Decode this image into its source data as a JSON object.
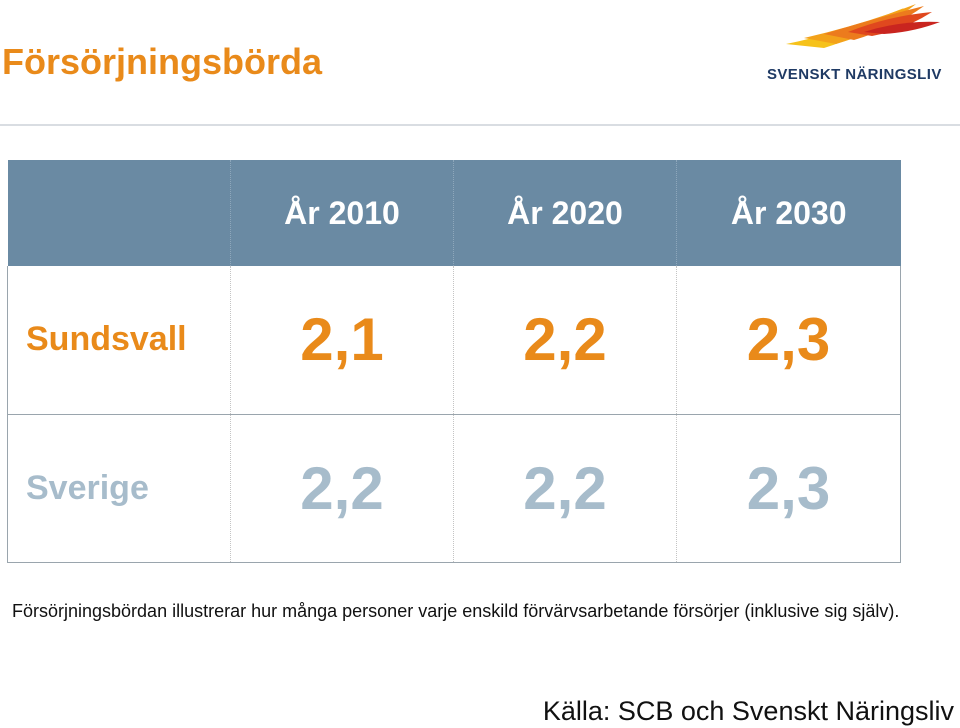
{
  "header": {
    "title": "Försörjningsbörda",
    "logo_text": "SVENSKT NÄRINGSLIV"
  },
  "table": {
    "columns": [
      "År 2010",
      "År 2020",
      "År 2030"
    ],
    "rows": [
      {
        "label": "Sundsvall",
        "values": [
          "2,1",
          "2,2",
          "2,3"
        ]
      },
      {
        "label": "Sverige",
        "values": [
          "2,2",
          "2,2",
          "2,3"
        ]
      }
    ]
  },
  "note": "Försörjningsbördan illustrerar hur många personer varje enskild förvärvsarbetande försörjer (inklusive sig själv).",
  "source": "Källa: SCB och Svenskt Näringsliv",
  "colors": {
    "accent": "#e98a1a",
    "header_bg": "#6a8aa3",
    "muted": "#a7bccb",
    "logo_text": "#1f3a64"
  }
}
